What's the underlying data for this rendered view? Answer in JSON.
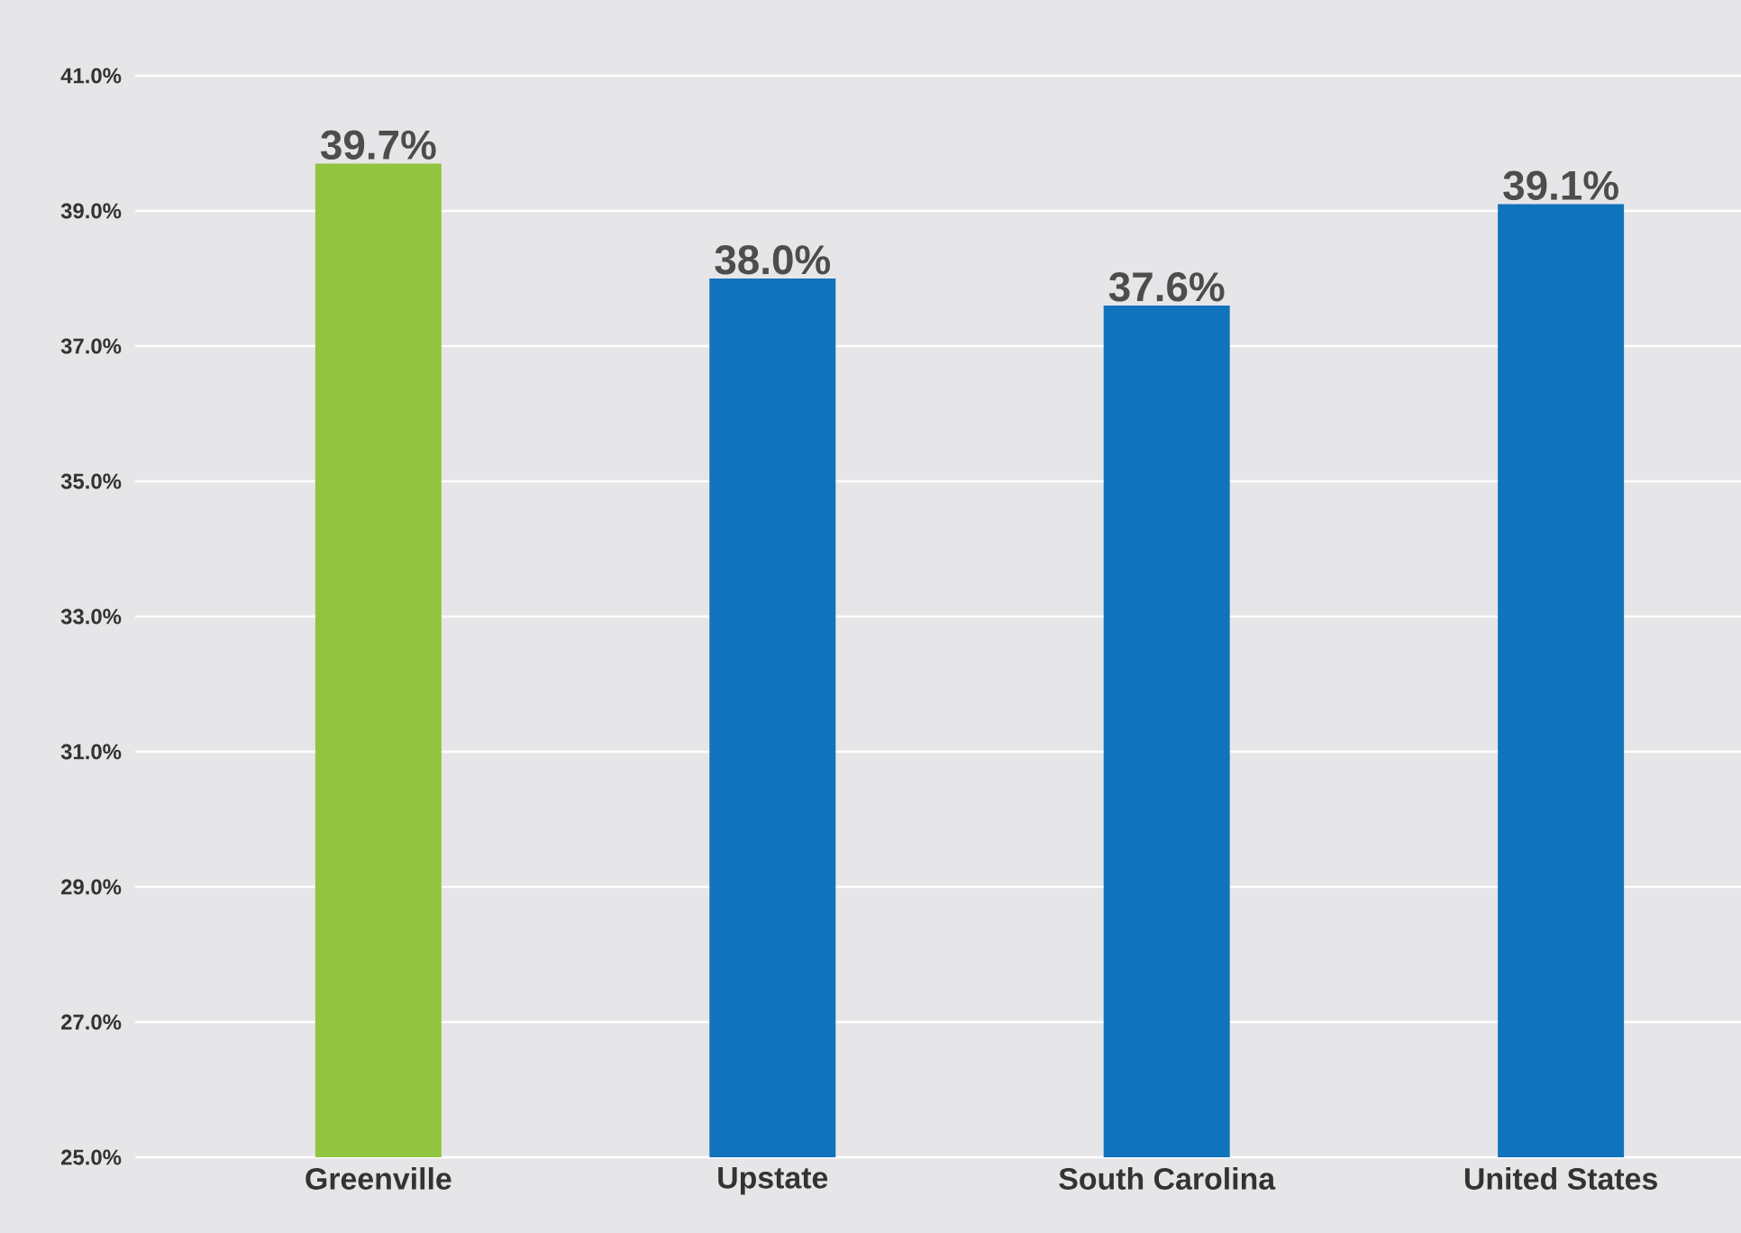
{
  "chart_data": {
    "type": "bar",
    "categories": [
      "Greenville",
      "Upstate",
      "South Carolina",
      "United States"
    ],
    "values": [
      39.7,
      38.0,
      37.6,
      39.1
    ],
    "value_labels": [
      "39.7%",
      "38.0%",
      "37.6%",
      "39.1%"
    ],
    "colors": [
      "#93c43f",
      "#1173bc",
      "#1173bc",
      "#1173bc"
    ],
    "ylim": [
      25,
      41
    ],
    "yticks": [
      {
        "value": 25,
        "label": "25.0%"
      },
      {
        "value": 27,
        "label": "27.0%"
      },
      {
        "value": 29,
        "label": "29.0%"
      },
      {
        "value": 31,
        "label": "31.0%"
      },
      {
        "value": 33,
        "label": "33.0%"
      },
      {
        "value": 35,
        "label": "35.0%"
      },
      {
        "value": 37,
        "label": "37.0%"
      },
      {
        "value": 39,
        "label": "39.0%"
      },
      {
        "value": 41,
        "label": "41.0%"
      }
    ],
    "grid": "y"
  }
}
